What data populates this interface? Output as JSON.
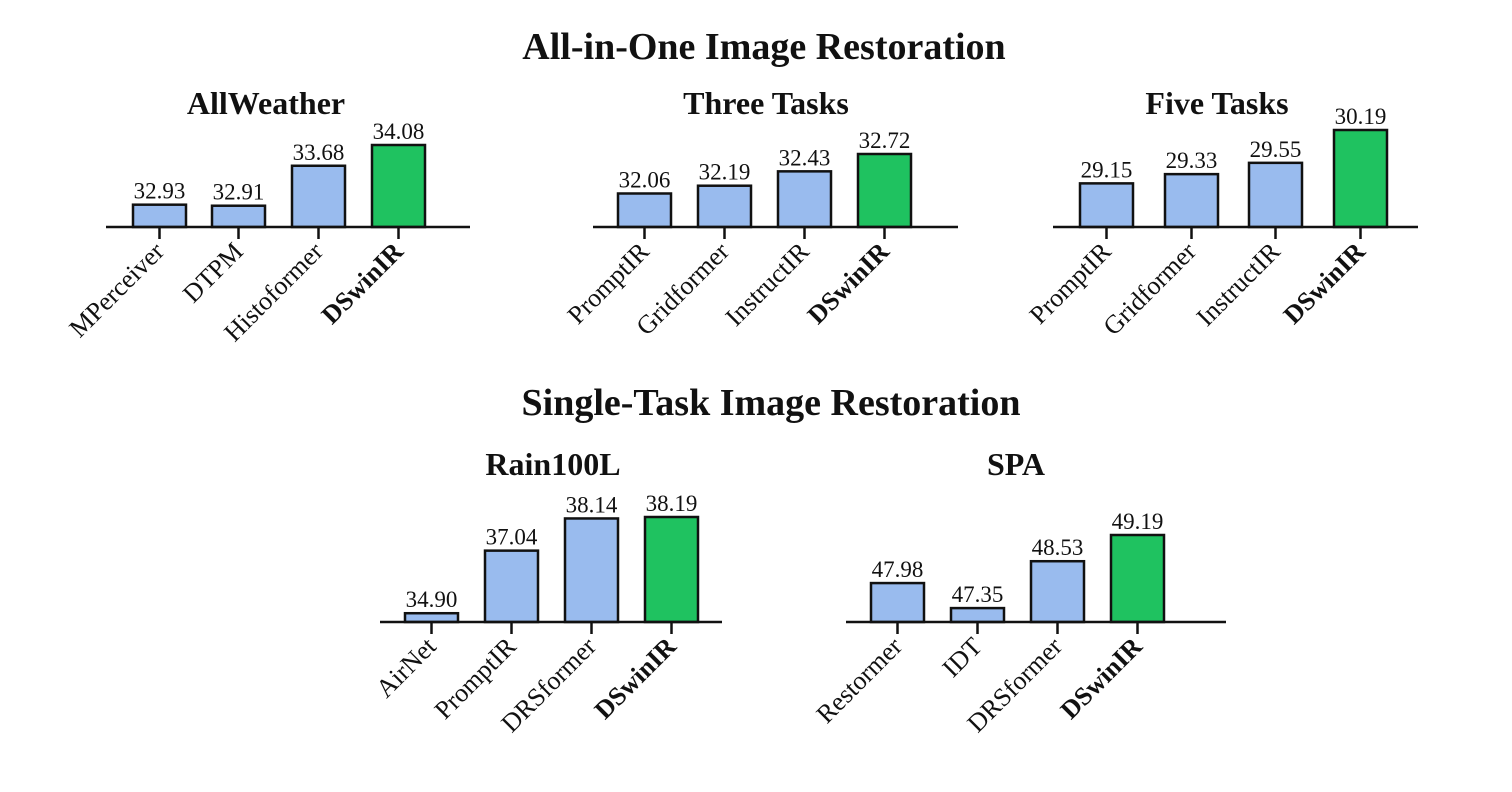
{
  "sections": [
    {
      "title": "All-in-One Image Restoration"
    },
    {
      "title": "Single-Task Image Restoration"
    }
  ],
  "colors": {
    "baseline": "#99bbee",
    "highlight": "#1fc260",
    "stroke": "#111111"
  },
  "chart_data": [
    {
      "type": "bar",
      "title": "AllWeather",
      "categories": [
        "MPerceiver",
        "DTPM",
        "Histoformer",
        "DSwinIR"
      ],
      "values": [
        32.93,
        32.91,
        33.68,
        34.08
      ],
      "value_labels": [
        "32.93",
        "32.91",
        "33.68",
        "34.08"
      ],
      "highlight": "DSwinIR",
      "ylim": [
        32.5,
        34.2
      ],
      "grid": false
    },
    {
      "type": "bar",
      "title": "Three Tasks",
      "categories": [
        "PromptIR",
        "Gridformer",
        "InstructIR",
        "DSwinIR"
      ],
      "values": [
        32.06,
        32.19,
        32.43,
        32.72
      ],
      "value_labels": [
        "32.06",
        "32.19",
        "32.43",
        "32.72"
      ],
      "highlight": "DSwinIR",
      "ylim": [
        31.5,
        33.0
      ],
      "grid": false
    },
    {
      "type": "bar",
      "title": "Five Tasks",
      "categories": [
        "PromptIR",
        "Gridformer",
        "InstructIR",
        "DSwinIR"
      ],
      "values": [
        29.15,
        29.33,
        29.55,
        30.19
      ],
      "value_labels": [
        "29.15",
        "29.33",
        "29.55",
        "30.19"
      ],
      "highlight": "DSwinIR",
      "ylim": [
        28.3,
        30.3
      ],
      "grid": false
    },
    {
      "type": "bar",
      "title": "Rain100L",
      "categories": [
        "AirNet",
        "PromptIR",
        "DRSformer",
        "DSwinIR"
      ],
      "values": [
        34.9,
        37.04,
        38.14,
        38.19
      ],
      "value_labels": [
        "34.90",
        "37.04",
        "38.14",
        "38.19"
      ],
      "highlight": "DSwinIR",
      "ylim": [
        34.6,
        38.5
      ],
      "grid": false
    },
    {
      "type": "bar",
      "title": "SPA",
      "categories": [
        "Restormer",
        "IDT",
        "DRSformer",
        "DSwinIR"
      ],
      "values": [
        47.98,
        47.35,
        48.53,
        49.19
      ],
      "value_labels": [
        "47.98",
        "47.35",
        "48.53",
        "49.19"
      ],
      "highlight": "DSwinIR",
      "ylim": [
        47.0,
        49.3
      ],
      "grid": false
    }
  ]
}
